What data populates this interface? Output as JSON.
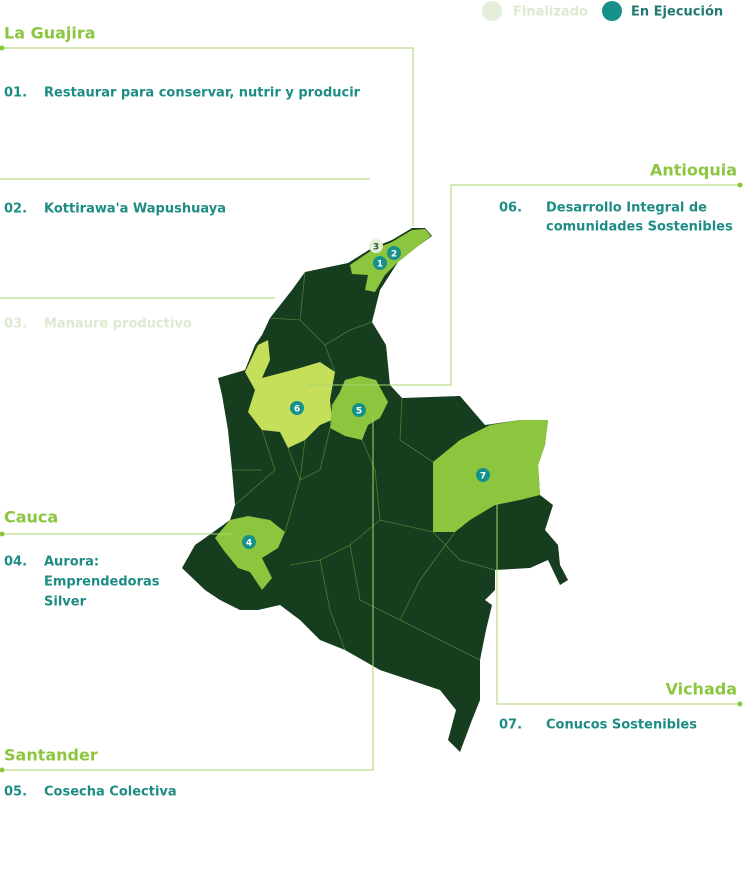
{
  "legend": [
    {
      "label": "Finalizado"
    },
    {
      "label": "En Ejecución"
    }
  ],
  "regions": [
    {
      "name": "La Guajira",
      "projects": [
        {
          "number": "01.",
          "lines": [
            "Restaurar para conservar, nutrir y producir"
          ]
        },
        {
          "number": "02.",
          "lines": [
            "Kottirawa'a Wapushuaya"
          ]
        },
        {
          "number": "03.",
          "lines": [
            "Manaure productivo"
          ]
        }
      ]
    },
    {
      "name": "Antioquia",
      "projects": [
        {
          "number": "06.",
          "lines": [
            "Desarrollo Integral de",
            "comunidades Sostenibles"
          ]
        }
      ]
    },
    {
      "name": "Cauca",
      "projects": [
        {
          "number": "04.",
          "lines": [
            "Aurora:",
            "Emprendedoras",
            "Silver"
          ]
        }
      ]
    },
    {
      "name": "Santander",
      "projects": [
        {
          "number": "05.",
          "lines": [
            "Cosecha Colectiva"
          ]
        }
      ]
    },
    {
      "name": "Vichada",
      "projects": [
        {
          "number": "07.",
          "lines": [
            "Conucos Sostenibles"
          ]
        }
      ]
    }
  ],
  "markers": [
    {
      "label": "1"
    },
    {
      "label": "2"
    },
    {
      "label": "3"
    },
    {
      "label": "4"
    },
    {
      "label": "5"
    },
    {
      "label": "6"
    },
    {
      "label": "7"
    }
  ]
}
